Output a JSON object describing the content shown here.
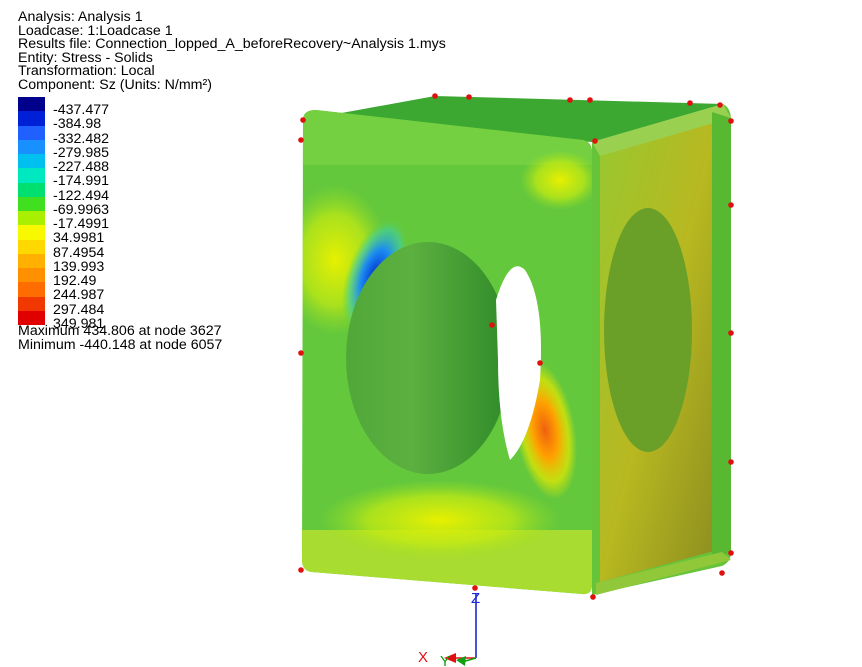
{
  "info": {
    "analysis": "Analysis: Analysis 1",
    "loadcase": "Loadcase: 1:Loadcase 1",
    "results_file": "Results file: Connection_lopped_A_beforeRecovery~Analysis 1.mys",
    "entity": "Entity: Stress - Solids",
    "transformation": "Transformation: Local",
    "component": "Component: Sz (Units: N/mm²)"
  },
  "legend": {
    "colors": [
      "#00008c",
      "#0020d8",
      "#2060ff",
      "#1890ff",
      "#00c0f0",
      "#00e8c0",
      "#00e070",
      "#40e020",
      "#a8f000",
      "#f8f800",
      "#ffd800",
      "#ffb000",
      "#ff9000",
      "#ff6c00",
      "#f03800",
      "#e00000"
    ],
    "labels": [
      "-437.477",
      "-384.98",
      "-332.482",
      "-279.985",
      "-227.488",
      "-174.991",
      "-122.494",
      "-69.9963",
      "-17.4991",
      "34.9981",
      "87.4954",
      "139.993",
      "192.49",
      "244.987",
      "297.484",
      "349.981"
    ]
  },
  "extremes": {
    "maximum": "Maximum 434.806 at node 3627",
    "minimum": "Minimum -440.148 at node 6057"
  },
  "triad": {
    "z_label": "Z",
    "x_label": "X",
    "y_label": "Y"
  }
}
